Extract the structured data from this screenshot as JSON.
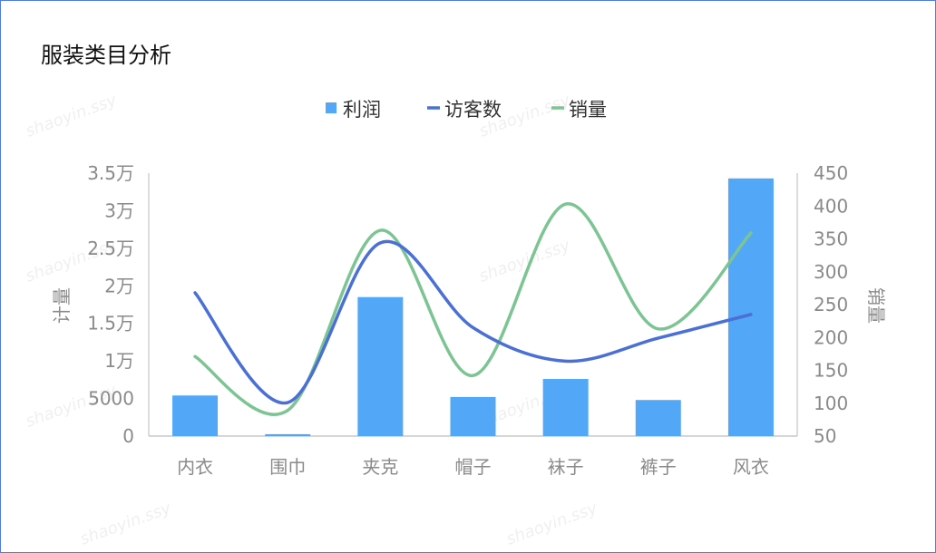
{
  "chart_data": {
    "type": "bar+line",
    "title": "服装类目分析",
    "categories": [
      "内衣",
      "围巾",
      "夹克",
      "帽子",
      "袜子",
      "裤子",
      "风衣"
    ],
    "series": [
      {
        "name": "利润",
        "type": "bar",
        "axis": "left",
        "color": "#52a7f7",
        "values": [
          5400,
          250,
          18500,
          5200,
          7600,
          4800,
          34300
        ]
      },
      {
        "name": "访客数",
        "type": "line",
        "axis": "right",
        "color": "#4a6fd6",
        "values": [
          268,
          101,
          344,
          215,
          164,
          199,
          235
        ]
      },
      {
        "name": "销量",
        "type": "line",
        "axis": "right",
        "color": "#7cc593",
        "values": [
          171,
          89,
          363,
          142,
          403,
          213,
          359
        ]
      }
    ],
    "left_axis": {
      "label": "计量",
      "ylim": [
        0,
        35000
      ],
      "ticks": [
        0,
        5000,
        10000,
        15000,
        20000,
        25000,
        30000,
        35000
      ],
      "tick_labels": [
        "0",
        "5000",
        "1万",
        "1.5万",
        "2万",
        "2.5万",
        "3万",
        "3.5万"
      ]
    },
    "right_axis": {
      "label": "销量",
      "ylim": [
        50,
        450
      ],
      "ticks": [
        50,
        100,
        150,
        200,
        250,
        300,
        350,
        400,
        450
      ],
      "tick_labels": [
        "50",
        "100",
        "150",
        "200",
        "250",
        "300",
        "350",
        "400",
        "450"
      ]
    },
    "legend": "top",
    "grid": false,
    "watermark": "shaoyin.ssy"
  }
}
